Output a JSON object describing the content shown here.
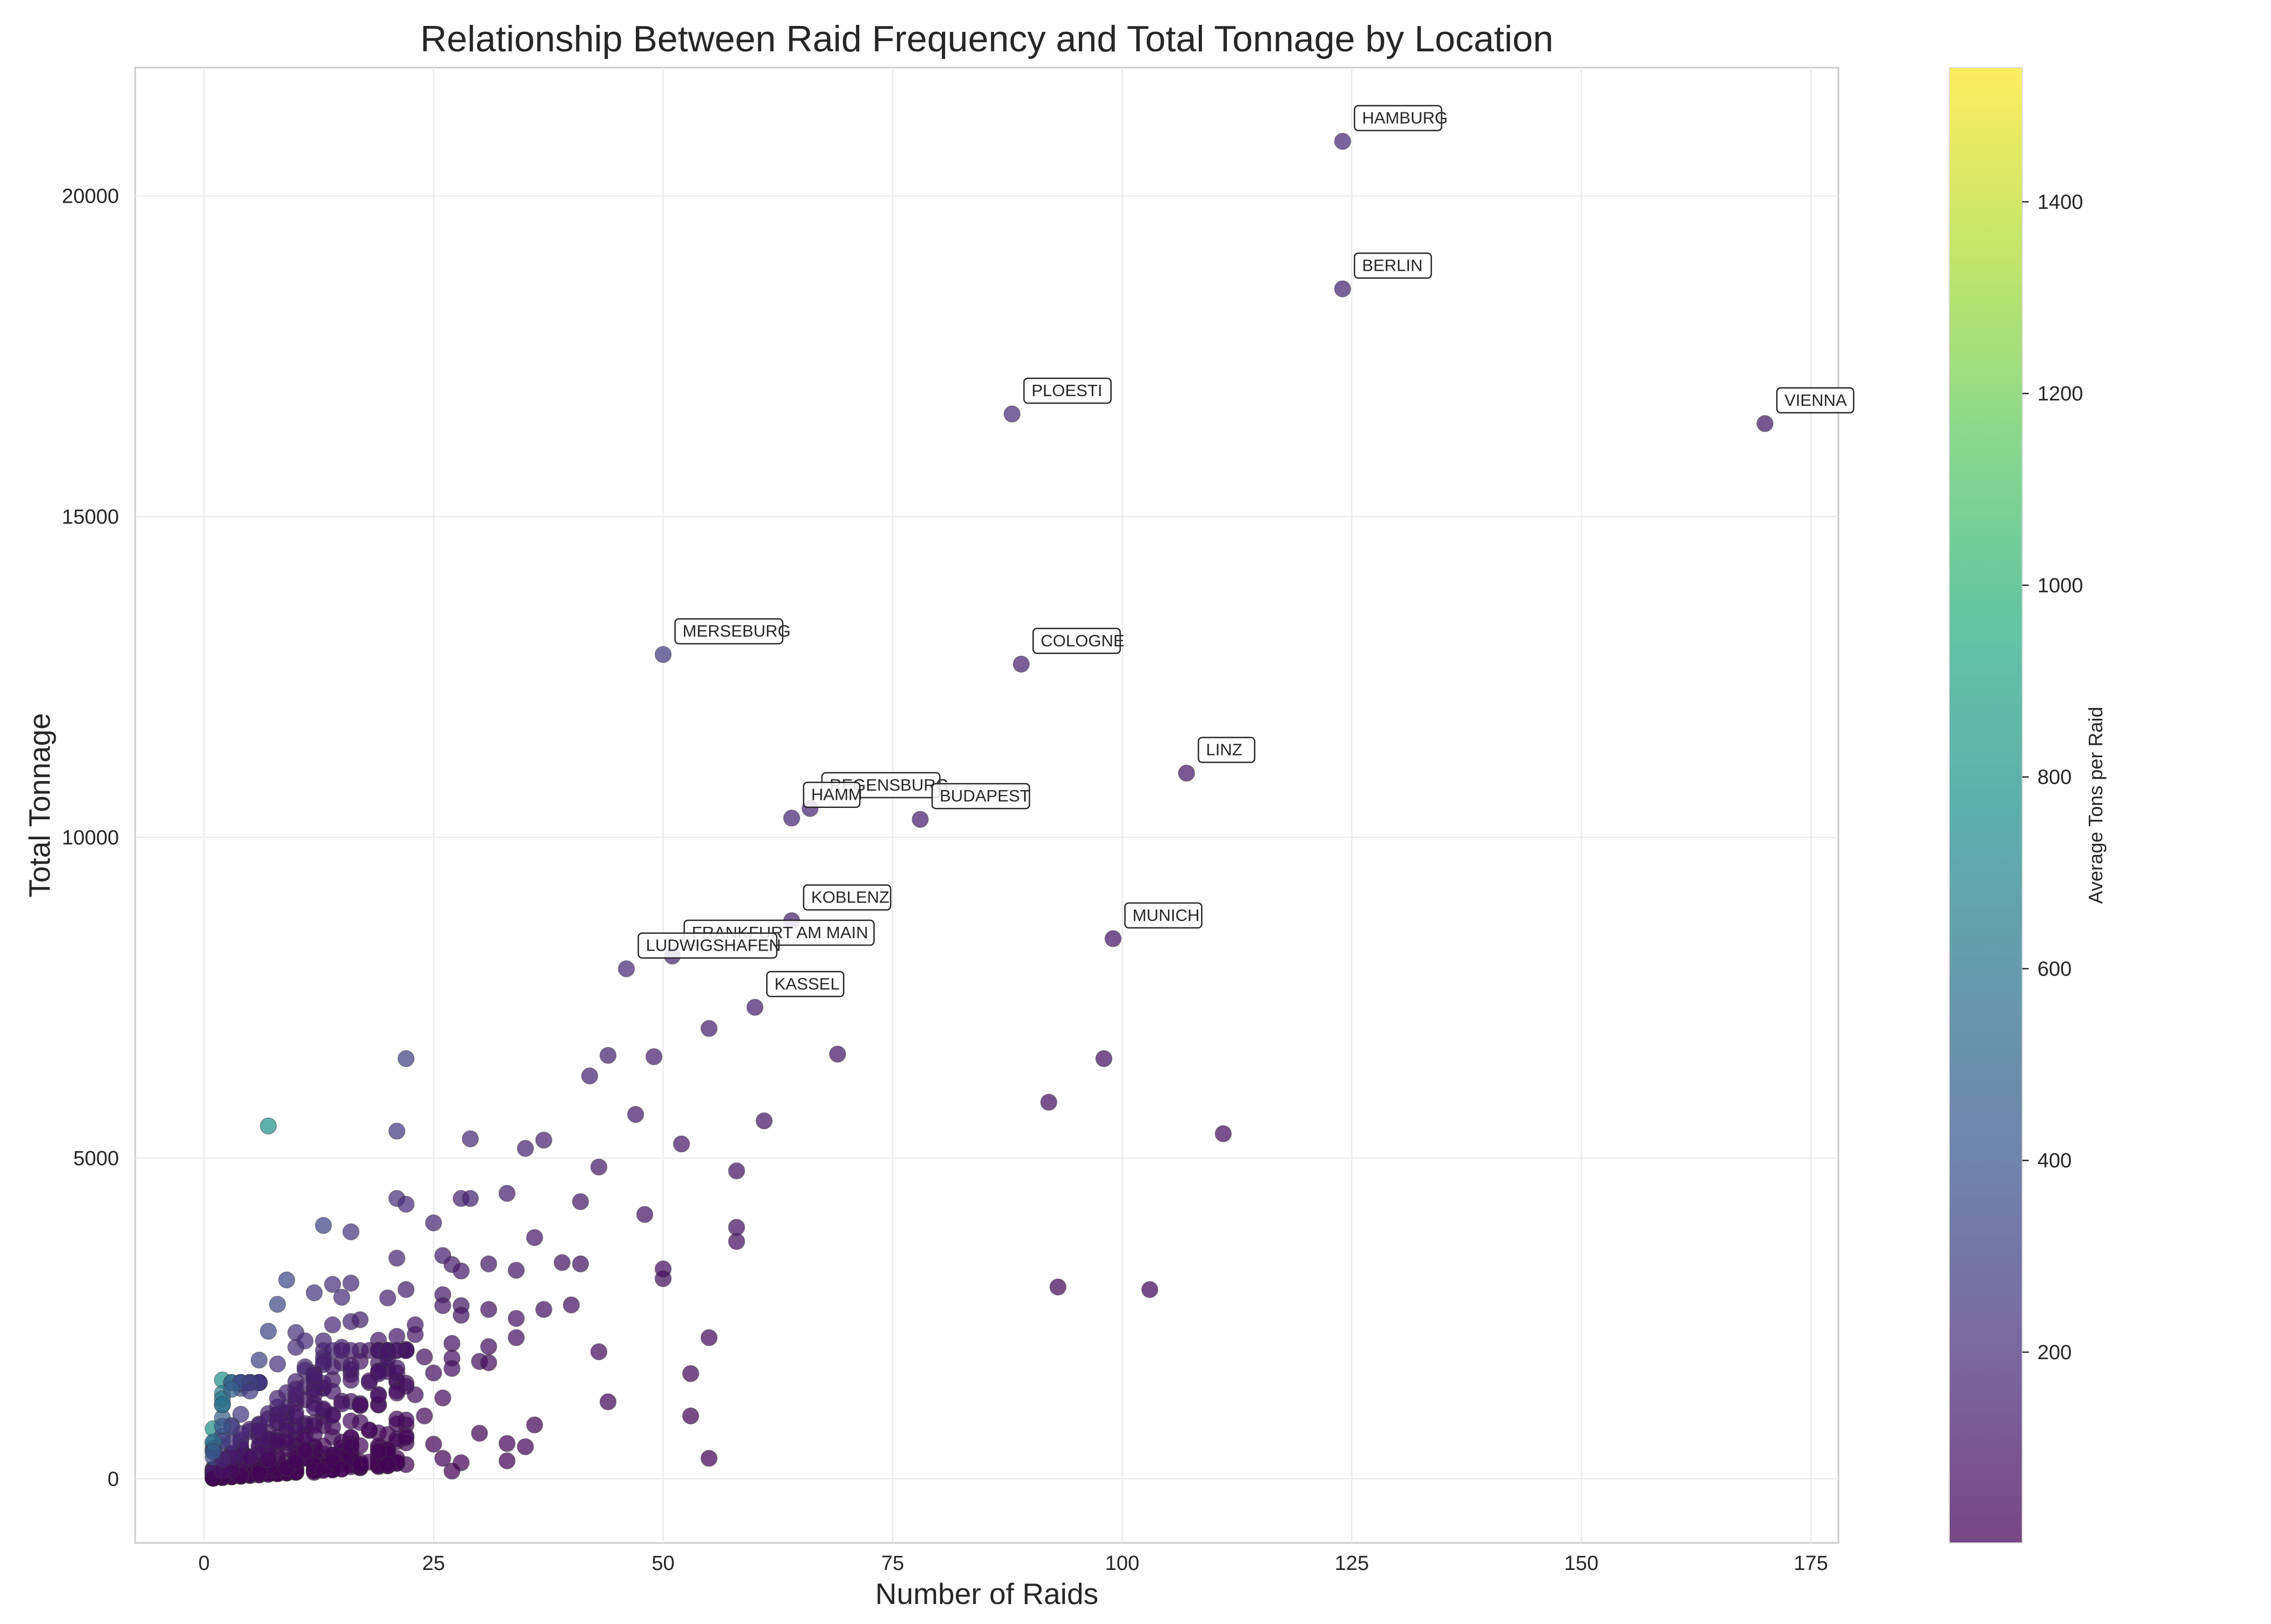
{
  "chart_data": {
    "type": "scatter",
    "title": "Relationship Between Raid Frequency and Total Tonnage by Location",
    "xlabel": "Number of Raids",
    "ylabel": "Total Tonnage",
    "xlim": [
      -7.5,
      178
    ],
    "ylim": [
      -1000,
      22000
    ],
    "x_ticks": [
      0,
      25,
      50,
      75,
      100,
      125,
      150,
      175
    ],
    "y_ticks": [
      0,
      5000,
      10000,
      15000,
      20000
    ],
    "grid": true,
    "colorbar": {
      "label": "Average Tons per Raid",
      "range": [
        1,
        1540
      ],
      "ticks": [
        200,
        400,
        600,
        800,
        1000,
        1200,
        1400
      ],
      "colormap": "viridis"
    },
    "labeled_points": [
      {
        "label": "HAMBURG",
        "x": 124,
        "y": 20850
      },
      {
        "label": "BERLIN",
        "x": 124,
        "y": 18550
      },
      {
        "label": "PLOESTI",
        "x": 88,
        "y": 16600
      },
      {
        "label": "VIENNA",
        "x": 170,
        "y": 16450
      },
      {
        "label": "MERSEBURG",
        "x": 50,
        "y": 12850
      },
      {
        "label": "COLOGNE",
        "x": 89,
        "y": 12700
      },
      {
        "label": "LINZ",
        "x": 107,
        "y": 11000
      },
      {
        "label": "REGENSBURG",
        "x": 66,
        "y": 10450
      },
      {
        "label": "HAMM",
        "x": 64,
        "y": 10300
      },
      {
        "label": "BUDAPEST",
        "x": 78,
        "y": 10280
      },
      {
        "label": "KOBLENZ",
        "x": 64,
        "y": 8700
      },
      {
        "label": "FRANKFURT AM MAIN",
        "x": 51,
        "y": 8150
      },
      {
        "label": "MUNICH",
        "x": 99,
        "y": 8420
      },
      {
        "label": "LUDWIGSHAFEN",
        "x": 46,
        "y": 7950
      },
      {
        "label": "KASSEL",
        "x": 60,
        "y": 7350
      }
    ],
    "other_points": [
      [
        7,
        5500
      ],
      [
        22,
        6550
      ],
      [
        21,
        5420
      ],
      [
        44,
        6600
      ],
      [
        49,
        6580
      ],
      [
        42,
        6280
      ],
      [
        47,
        5680
      ],
      [
        52,
        5220
      ],
      [
        55,
        7020
      ],
      [
        61,
        5580
      ],
      [
        69,
        6620
      ],
      [
        92,
        5870
      ],
      [
        98,
        6550
      ],
      [
        111,
        5380
      ],
      [
        29,
        5300
      ],
      [
        37,
        5280
      ],
      [
        35,
        5150
      ],
      [
        43,
        4860
      ],
      [
        58,
        4800
      ],
      [
        33,
        4450
      ],
      [
        28,
        4370
      ],
      [
        29,
        4370
      ],
      [
        21,
        4370
      ],
      [
        22,
        4280
      ],
      [
        41,
        4320
      ],
      [
        48,
        4120
      ],
      [
        13,
        3950
      ],
      [
        16,
        3850
      ],
      [
        25,
        3990
      ],
      [
        36,
        3760
      ],
      [
        58,
        3920
      ],
      [
        58,
        3700
      ],
      [
        21,
        3440
      ],
      [
        26,
        3480
      ],
      [
        27,
        3340
      ],
      [
        31,
        3350
      ],
      [
        28,
        3240
      ],
      [
        34,
        3250
      ],
      [
        39,
        3370
      ],
      [
        41,
        3350
      ],
      [
        50,
        3270
      ],
      [
        50,
        3120
      ],
      [
        9,
        3100
      ],
      [
        14,
        3030
      ],
      [
        16,
        3050
      ],
      [
        93,
        2990
      ],
      [
        103,
        2950
      ],
      [
        8,
        2720
      ],
      [
        15,
        2830
      ],
      [
        20,
        2820
      ],
      [
        22,
        2950
      ],
      [
        26,
        2870
      ],
      [
        26,
        2700
      ],
      [
        28,
        2700
      ],
      [
        28,
        2550
      ],
      [
        31,
        2640
      ],
      [
        37,
        2640
      ],
      [
        40,
        2710
      ],
      [
        12,
        2900
      ],
      [
        7,
        2300
      ],
      [
        10,
        2280
      ],
      [
        14,
        2400
      ],
      [
        16,
        2450
      ],
      [
        17,
        2480
      ],
      [
        19,
        2160
      ],
      [
        21,
        2220
      ],
      [
        23,
        2400
      ],
      [
        23,
        2250
      ],
      [
        31,
        2060
      ],
      [
        34,
        2500
      ],
      [
        34,
        2200
      ],
      [
        55,
        2200
      ],
      [
        6,
        1850
      ],
      [
        8,
        1790
      ],
      [
        10,
        2050
      ],
      [
        11,
        2150
      ],
      [
        13,
        2150
      ],
      [
        15,
        2050
      ],
      [
        17,
        2000
      ],
      [
        19,
        1800
      ],
      [
        20,
        1960
      ],
      [
        22,
        2020
      ],
      [
        24,
        1900
      ],
      [
        27,
        2110
      ],
      [
        27,
        1880
      ],
      [
        30,
        1830
      ],
      [
        31,
        1810
      ],
      [
        43,
        1980
      ],
      [
        53,
        1640
      ],
      [
        25,
        1650
      ],
      [
        27,
        1720
      ],
      [
        20,
        1720
      ],
      [
        21,
        1510
      ],
      [
        18,
        1500
      ],
      [
        44,
        1200
      ],
      [
        26,
        1260
      ],
      [
        23,
        1310
      ],
      [
        17,
        1150
      ],
      [
        53,
        980
      ],
      [
        24,
        980
      ],
      [
        36,
        840
      ],
      [
        30,
        710
      ],
      [
        22,
        560
      ],
      [
        25,
        540
      ],
      [
        33,
        550
      ],
      [
        35,
        500
      ],
      [
        20,
        450
      ],
      [
        15,
        420
      ],
      [
        55,
        320
      ],
      [
        26,
        320
      ],
      [
        28,
        250
      ],
      [
        33,
        280
      ],
      [
        20,
        250
      ],
      [
        27,
        120
      ],
      [
        17,
        180
      ],
      [
        12,
        100
      ],
      [
        8,
        80
      ],
      [
        2,
        1540
      ],
      [
        2,
        1330
      ],
      [
        1,
        780
      ],
      [
        2,
        950
      ],
      [
        3,
        830
      ],
      [
        1,
        550
      ],
      [
        2,
        500
      ],
      [
        4,
        400
      ],
      [
        3,
        300
      ],
      [
        5,
        200
      ],
      [
        6,
        120
      ]
    ]
  }
}
